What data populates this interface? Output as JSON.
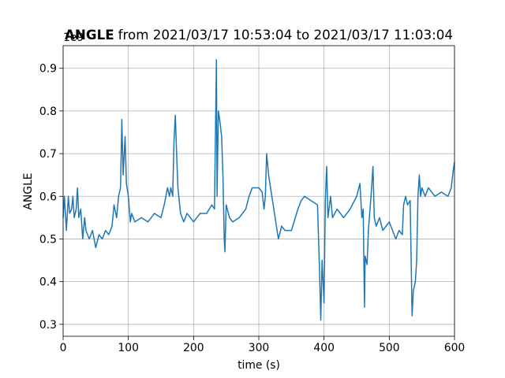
{
  "chart_data": {
    "type": "line",
    "title_bold": "ANGLE",
    "title": "from 2021/03/17 10:53:04 to 2021/03/17 11:03:04",
    "xlabel": "time (s)",
    "ylabel": "ANGLE",
    "y_offset_label": "1e9",
    "xlim": [
      0,
      600
    ],
    "xticks": [
      0,
      100,
      200,
      300,
      400,
      500,
      600
    ],
    "ylim": [
      0.272,
      0.953
    ],
    "yticks": [
      0.3,
      0.4,
      0.5,
      0.6,
      0.7,
      0.8,
      0.9
    ],
    "grid": true,
    "x": [
      0,
      2,
      5,
      8,
      10,
      13,
      15,
      17,
      20,
      22,
      24,
      27,
      30,
      33,
      35,
      40,
      45,
      50,
      55,
      60,
      65,
      70,
      75,
      78,
      82,
      85,
      88,
      90,
      92,
      95,
      97,
      100,
      103,
      105,
      110,
      120,
      130,
      140,
      150,
      155,
      160,
      163,
      165,
      168,
      170,
      172,
      174,
      176,
      180,
      185,
      190,
      200,
      210,
      220,
      228,
      232,
      234,
      235,
      236,
      238,
      240,
      243,
      245,
      247,
      248,
      250,
      255,
      260,
      270,
      280,
      285,
      290,
      300,
      305,
      308,
      310,
      312,
      315,
      318,
      320,
      325,
      330,
      335,
      340,
      350,
      360,
      365,
      370,
      380,
      390,
      393,
      395,
      397,
      400,
      402,
      404,
      406,
      410,
      413,
      420,
      430,
      440,
      450,
      455,
      458,
      460,
      462,
      463,
      466,
      468,
      472,
      475,
      477,
      480,
      485,
      490,
      500,
      510,
      515,
      520,
      522,
      525,
      528,
      532,
      535,
      537,
      540,
      542,
      544,
      546,
      548,
      550,
      555,
      560,
      570,
      580,
      590,
      595,
      598,
      600
    ],
    "series": [
      {
        "name": "ANGLE",
        "color": "#1f77b4",
        "values": [
          0.55,
          0.6,
          0.52,
          0.6,
          0.56,
          0.57,
          0.6,
          0.55,
          0.57,
          0.62,
          0.55,
          0.57,
          0.5,
          0.55,
          0.52,
          0.5,
          0.52,
          0.48,
          0.51,
          0.5,
          0.52,
          0.51,
          0.53,
          0.58,
          0.55,
          0.6,
          0.62,
          0.78,
          0.65,
          0.74,
          0.63,
          0.6,
          0.54,
          0.56,
          0.54,
          0.55,
          0.54,
          0.56,
          0.55,
          0.58,
          0.62,
          0.6,
          0.62,
          0.6,
          0.73,
          0.79,
          0.7,
          0.62,
          0.56,
          0.54,
          0.56,
          0.54,
          0.56,
          0.56,
          0.58,
          0.57,
          0.8,
          0.92,
          0.6,
          0.8,
          0.78,
          0.74,
          0.65,
          0.5,
          0.47,
          0.58,
          0.55,
          0.54,
          0.55,
          0.57,
          0.6,
          0.62,
          0.62,
          0.61,
          0.57,
          0.6,
          0.7,
          0.65,
          0.62,
          0.6,
          0.55,
          0.5,
          0.53,
          0.52,
          0.52,
          0.57,
          0.59,
          0.6,
          0.59,
          0.58,
          0.43,
          0.31,
          0.45,
          0.35,
          0.59,
          0.67,
          0.55,
          0.6,
          0.55,
          0.57,
          0.55,
          0.57,
          0.6,
          0.63,
          0.55,
          0.57,
          0.34,
          0.46,
          0.44,
          0.52,
          0.6,
          0.67,
          0.55,
          0.53,
          0.55,
          0.52,
          0.54,
          0.5,
          0.52,
          0.51,
          0.58,
          0.6,
          0.58,
          0.59,
          0.32,
          0.38,
          0.4,
          0.45,
          0.6,
          0.65,
          0.6,
          0.62,
          0.6,
          0.62,
          0.6,
          0.61,
          0.6,
          0.62,
          0.66,
          0.68
        ]
      }
    ]
  }
}
